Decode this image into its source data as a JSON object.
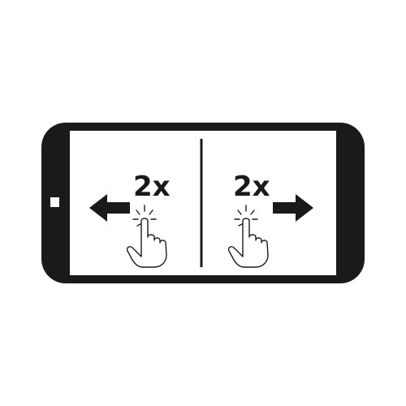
{
  "left_panel": {
    "tap_count_label": "2x",
    "direction": "left"
  },
  "right_panel": {
    "tap_count_label": "2x",
    "direction": "right"
  },
  "colors": {
    "ink": "#1a1a1a",
    "screen": "#ffffff",
    "background": "#ffffff"
  },
  "icons": {
    "device": "smartphone-landscape-icon",
    "home_button": "home-button-icon",
    "left_arrow": "arrow-left-icon",
    "right_arrow": "arrow-right-icon",
    "tap_hand": "tapping-hand-icon"
  }
}
